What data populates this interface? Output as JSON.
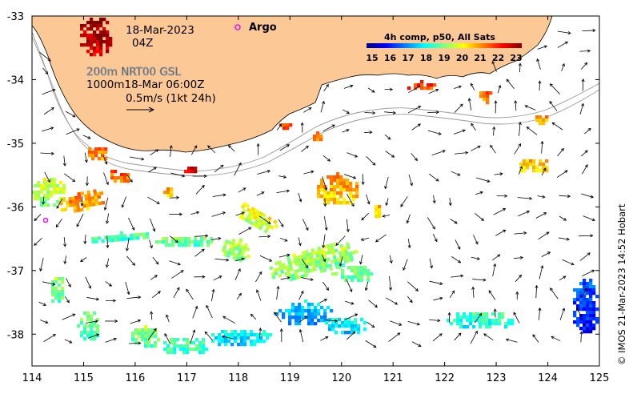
{
  "map": {
    "lon_range": [
      114,
      125
    ],
    "lat_range": [
      -38.5,
      -33
    ],
    "x_ticks": [
      "114",
      "115",
      "116",
      "117",
      "118",
      "119",
      "120",
      "121",
      "122",
      "123",
      "124",
      "125"
    ],
    "y_ticks": [
      "-33",
      "-34",
      "-35",
      "-36",
      "-37",
      "-38"
    ],
    "land_color": "#fcc895",
    "coast_color": "#000000",
    "isobath_color": "#999999"
  },
  "info": {
    "date_line": "18-Mar-2023",
    "time_line": "04Z",
    "isobath_line": "200m  NRT00 GSL",
    "isobath_line2": "1000m18-Mar 06:00Z",
    "scale_label": "0.5m/s (1kt 24h)"
  },
  "legend": {
    "title": "4h comp, p50, All Sats",
    "ticks": [
      "15",
      "16",
      "17",
      "18",
      "19",
      "20",
      "21",
      "22",
      "23"
    ],
    "colors": [
      "#00007f",
      "#0000ff",
      "#007fff",
      "#00ffff",
      "#7fff7f",
      "#ffff00",
      "#ff7f00",
      "#ff0000",
      "#7f0000"
    ]
  },
  "markers": {
    "argo_label": "Argo",
    "argo_color": "#e020e0"
  },
  "copyright": "© IMOS 21-Mar-2023 14:52 Hobart"
}
